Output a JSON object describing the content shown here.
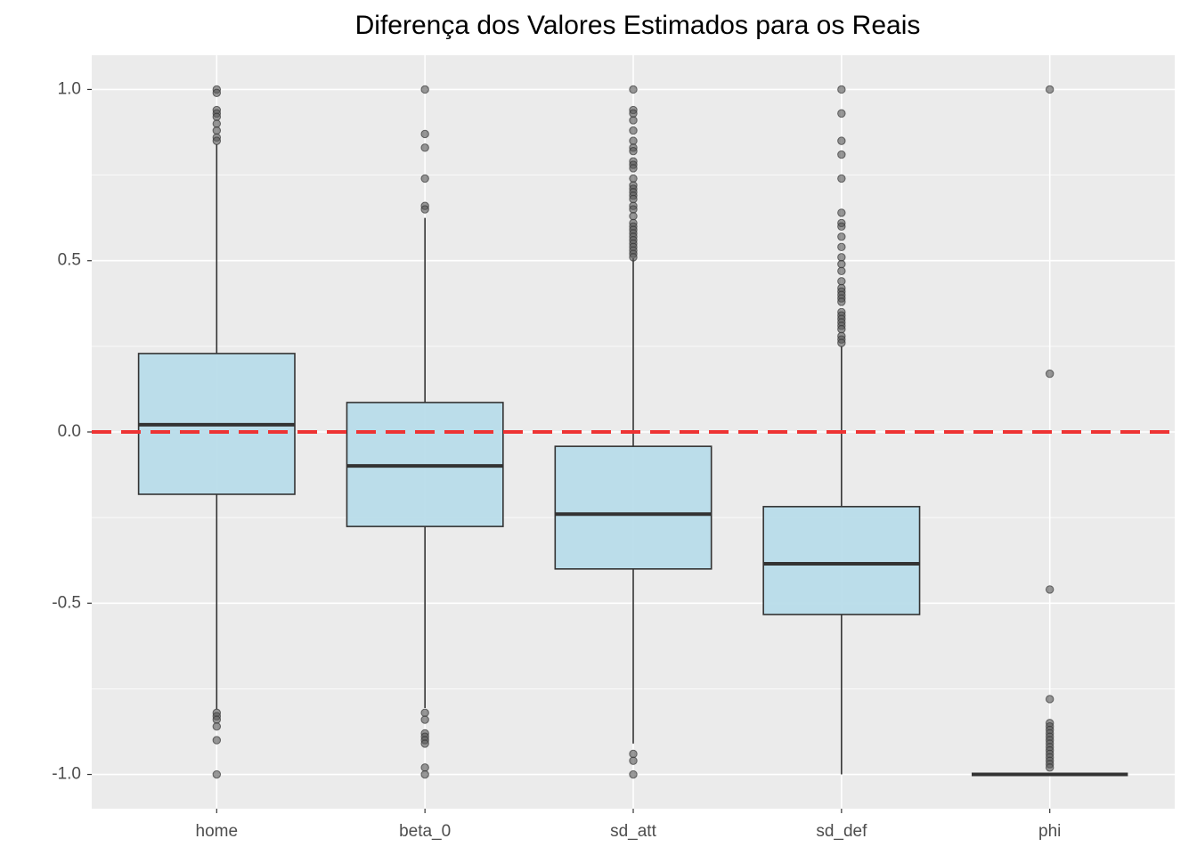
{
  "chart_data": {
    "type": "box",
    "title": "Diferença dos Valores Estimados para os Reais",
    "categories": [
      "home",
      "beta_0",
      "sd_att",
      "sd_def",
      "phi"
    ],
    "boxes": [
      {
        "whislo": -0.81,
        "q1": -0.182,
        "med": 0.021,
        "q3": 0.229,
        "whishi": 0.84,
        "fliers": [
          1.0,
          0.99,
          0.94,
          0.93,
          0.92,
          0.9,
          0.88,
          0.86,
          0.85,
          -0.82,
          -0.83,
          -0.84,
          -0.86,
          -0.9,
          -1.0
        ]
      },
      {
        "whislo": -0.806,
        "q1": -0.276,
        "med": -0.099,
        "q3": 0.086,
        "whishi": 0.625,
        "fliers": [
          1.0,
          0.87,
          0.83,
          0.74,
          0.66,
          0.65,
          -0.82,
          -0.84,
          -0.88,
          -0.89,
          -0.9,
          -0.91,
          -0.98,
          -1.0
        ]
      },
      {
        "whislo": -0.91,
        "q1": -0.4,
        "med": -0.24,
        "q3": -0.042,
        "whishi": 0.507,
        "fliers": [
          1.0,
          0.94,
          0.93,
          0.91,
          0.88,
          0.85,
          0.83,
          0.82,
          0.79,
          0.78,
          0.77,
          0.74,
          0.72,
          0.71,
          0.7,
          0.69,
          0.68,
          0.66,
          0.65,
          0.63,
          0.61,
          0.6,
          0.59,
          0.58,
          0.57,
          0.56,
          0.55,
          0.54,
          0.53,
          0.52,
          0.51,
          -0.94,
          -0.96,
          -1.0
        ]
      },
      {
        "whislo": -1.0,
        "q1": -0.533,
        "med": -0.385,
        "q3": -0.218,
        "whishi": 0.25,
        "fliers": [
          1.0,
          0.93,
          0.85,
          0.81,
          0.74,
          0.64,
          0.61,
          0.6,
          0.57,
          0.54,
          0.51,
          0.49,
          0.47,
          0.44,
          0.42,
          0.41,
          0.4,
          0.39,
          0.38,
          0.35,
          0.34,
          0.33,
          0.32,
          0.31,
          0.3,
          0.28,
          0.27,
          0.26
        ]
      },
      {
        "whislo": -1.0,
        "q1": -1.0,
        "med": -1.0,
        "q3": -1.0,
        "whishi": -1.0,
        "fliers": [
          1.0,
          0.17,
          -0.46,
          -0.78,
          -0.85,
          -0.86,
          -0.87,
          -0.88,
          -0.89,
          -0.9,
          -0.91,
          -0.92,
          -0.93,
          -0.94,
          -0.95,
          -0.96,
          -0.97,
          -0.98
        ]
      }
    ],
    "color": "#b8dcea",
    "edge_color": "#333333",
    "flier_color": "#555555",
    "hline": 0,
    "hline_color": "#ee3333",
    "ylim": [
      -1.1,
      1.1
    ],
    "yticks": [
      {
        "value": -1,
        "label": "-1.0"
      },
      -0.5,
      {
        "value": 0,
        "label": "0.0"
      },
      0.5,
      {
        "value": 1,
        "label": "1.0"
      }
    ],
    "grid": true,
    "minor_grid": true
  }
}
